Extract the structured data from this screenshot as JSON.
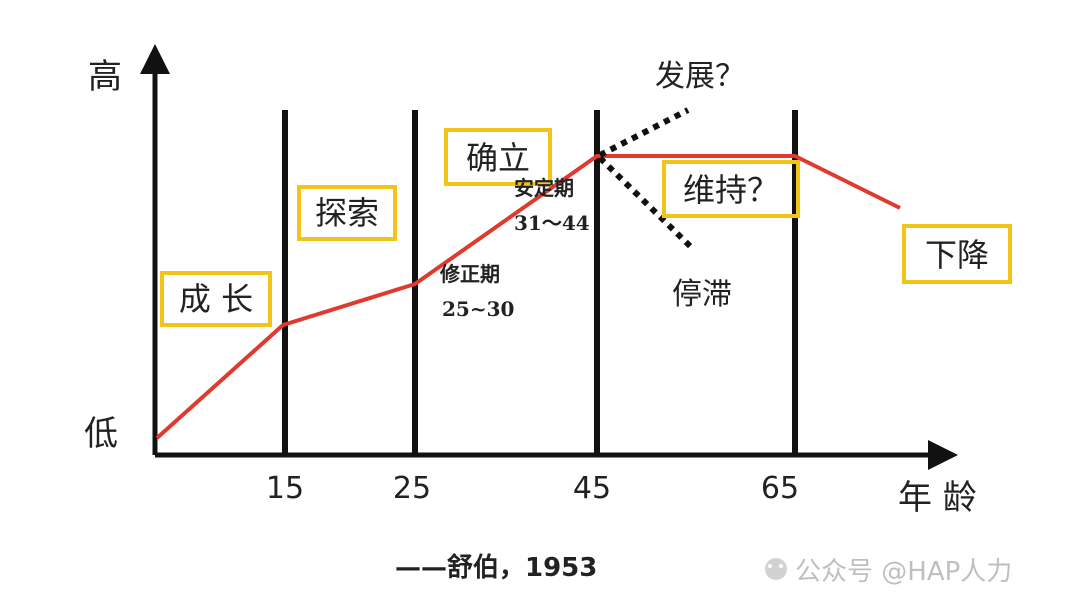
{
  "axis": {
    "y_high": "高",
    "y_low": "低",
    "x_title": "年 龄",
    "ticks": [
      "15",
      "25",
      "45",
      "65"
    ]
  },
  "stages": {
    "growth": "成 长",
    "explore": "探索",
    "establish": "确立",
    "maintain": "维持？",
    "decline": "下降"
  },
  "branches": {
    "develop": "发展？",
    "stagnate": "停滞"
  },
  "sub_periods": {
    "revision_name": "修正期",
    "revision_range": "25~30",
    "stable_name": "安定期",
    "stable_range": "31～44"
  },
  "caption": "——舒伯，1953",
  "watermark": "公众号 @HAP人力",
  "colors": {
    "curve": "#e03a2f",
    "box": "#f0c419",
    "axis": "#111111"
  }
}
